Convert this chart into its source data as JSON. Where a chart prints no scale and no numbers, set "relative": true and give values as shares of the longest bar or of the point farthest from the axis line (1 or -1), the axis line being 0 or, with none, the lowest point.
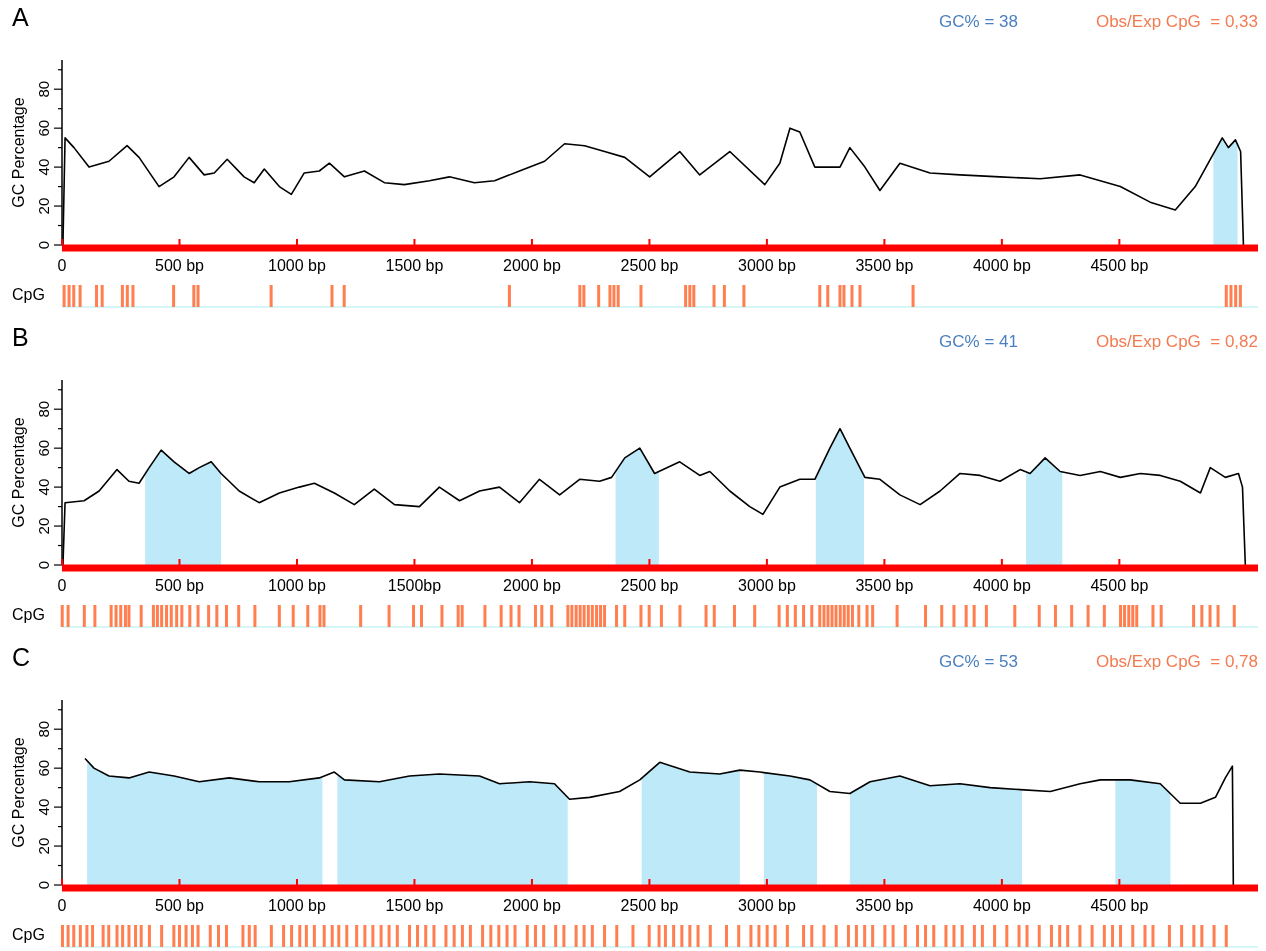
{
  "chart_data": [
    {
      "type": "line",
      "title": "A",
      "ylabel": "GC Percentage",
      "annotations": [
        "GC% = 38",
        "Obs/Exp CpG  = 0,33"
      ],
      "xlim": [
        0,
        5090
      ],
      "ylim": [
        0,
        95
      ],
      "xticks": [
        {
          "value": 0,
          "label": "0"
        },
        {
          "value": 500,
          "label": "500 bp"
        },
        {
          "value": 1000,
          "label": "1000 bp"
        },
        {
          "value": 1500,
          "label": "1500 bp"
        },
        {
          "value": 2000,
          "label": "2000 bp"
        },
        {
          "value": 2500,
          "label": "2500 bp"
        },
        {
          "value": 3000,
          "label": "3000 bp"
        },
        {
          "value": 3500,
          "label": "3500 bp"
        },
        {
          "value": 4000,
          "label": "4000 bp"
        },
        {
          "value": 4500,
          "label": "4500 bp"
        }
      ],
      "yticks": [
        0,
        {
          "value": 10,
          "label": null
        },
        20,
        {
          "value": 30,
          "label": null
        },
        40,
        {
          "value": 50,
          "label": null
        },
        60,
        {
          "value": 70,
          "label": null
        },
        80,
        {
          "value": 90,
          "label": null
        }
      ],
      "x": [
        4,
        13,
        51,
        115,
        200,
        277,
        328,
        413,
        477,
        541,
        605,
        648,
        703,
        775,
        818,
        861,
        925,
        976,
        1031,
        1095,
        1138,
        1202,
        1287,
        1372,
        1457,
        1564,
        1649,
        1755,
        1841,
        1947,
        2054,
        2139,
        2224,
        2309,
        2395,
        2501,
        2629,
        2714,
        2842,
        2991,
        3055,
        3098,
        3140,
        3204,
        3311,
        3353,
        3417,
        3481,
        3566,
        3694,
        3822,
        3992,
        4163,
        4333,
        4504,
        4631,
        4738,
        4823,
        4887,
        4938,
        4964,
        4994,
        5016,
        5028
      ],
      "series": [
        {
          "color": "#000000",
          "values": [
            0,
            55,
            50,
            40,
            43,
            51,
            45,
            30,
            35,
            45,
            36,
            37,
            44,
            35,
            32,
            39,
            30,
            26,
            37,
            38,
            42,
            35,
            38,
            32,
            31,
            33,
            35,
            32,
            33,
            38,
            43,
            52,
            51,
            48,
            45,
            35,
            48,
            36,
            48,
            31,
            42,
            60,
            58,
            40,
            40,
            50,
            40,
            28,
            42,
            37,
            36,
            35,
            34,
            36,
            30,
            22,
            18,
            30,
            44,
            55,
            50,
            54,
            48,
            0
          ]
        }
      ],
      "bands": [
        {
          "axis": "x",
          "from": 4900,
          "to": 5003,
          "color": "#bde9f8"
        }
      ]
    },
    {
      "type": "bar",
      "ylabel": "CpG",
      "relative": true,
      "xlim": [
        0,
        5090
      ],
      "x": [
        9,
        30,
        50,
        77,
        147,
        171,
        257,
        278,
        302,
        475,
        561,
        579,
        890,
        1149,
        1201,
        1904,
        2204,
        2221,
        2284,
        2332,
        2349,
        2367,
        2464,
        2654,
        2672,
        2689,
        2775,
        2819,
        2902,
        3225,
        3259,
        3311,
        3328,
        3362,
        3396,
        3622,
        4955,
        4975,
        4995,
        5015
      ],
      "series": [
        {
          "color": "#ff7f50",
          "values": [
            1,
            1,
            1,
            1,
            1,
            1,
            1,
            1,
            1,
            1,
            1,
            1,
            1,
            1,
            1,
            1,
            1,
            1,
            1,
            1,
            1,
            1,
            1,
            1,
            1,
            1,
            1,
            1,
            1,
            1,
            1,
            1,
            1,
            1,
            1,
            1,
            1,
            1,
            1,
            1
          ]
        }
      ]
    },
    {
      "type": "line",
      "title": "B",
      "ylabel": "GC Percentage",
      "annotations": [
        "GC% = 41",
        "Obs/Exp CpG  = 0,82"
      ],
      "xlim": [
        0,
        5090
      ],
      "ylim": [
        0,
        95
      ],
      "xticks": [
        {
          "value": 0,
          "label": "0"
        },
        {
          "value": 500,
          "label": "500 bp"
        },
        {
          "value": 1000,
          "label": "1000 bp"
        },
        {
          "value": 1500,
          "label": "1500bp"
        },
        {
          "value": 2000,
          "label": "2000 bp"
        },
        {
          "value": 2500,
          "label": "2500 bp"
        },
        {
          "value": 3000,
          "label": "3000 bp"
        },
        {
          "value": 3500,
          "label": "3500 bp"
        },
        {
          "value": 4000,
          "label": "4000 bp"
        },
        {
          "value": 4500,
          "label": "4500 bp"
        }
      ],
      "yticks": [
        0,
        {
          "value": 10,
          "label": null
        },
        20,
        {
          "value": 30,
          "label": null
        },
        40,
        {
          "value": 50,
          "label": null
        },
        60,
        {
          "value": 70,
          "label": null
        },
        80,
        {
          "value": 90,
          "label": null
        }
      ],
      "x": [
        4,
        13,
        94,
        158,
        234,
        285,
        328,
        371,
        422,
        477,
        541,
        584,
        635,
        677,
        754,
        839,
        925,
        1010,
        1074,
        1159,
        1244,
        1329,
        1415,
        1521,
        1606,
        1692,
        1777,
        1862,
        1947,
        2032,
        2118,
        2203,
        2288,
        2339,
        2395,
        2459,
        2522,
        2629,
        2714,
        2757,
        2842,
        2927,
        2983,
        3055,
        3140,
        3204,
        3268,
        3311,
        3353,
        3417,
        3481,
        3566,
        3652,
        3737,
        3822,
        3907,
        3992,
        4078,
        4120,
        4184,
        4248,
        4333,
        4419,
        4504,
        4589,
        4674,
        4759,
        4845,
        4887,
        4951,
        5007,
        5024,
        5036
      ],
      "series": [
        {
          "color": "#000000",
          "values": [
            0,
            32,
            33,
            38,
            49,
            43,
            42,
            50,
            59,
            53,
            47,
            50,
            53,
            47,
            38,
            32,
            37,
            40,
            42,
            37,
            31,
            39,
            31,
            30,
            40,
            33,
            38,
            40,
            32,
            44,
            36,
            44,
            43,
            45,
            55,
            60,
            47,
            53,
            46,
            48,
            38,
            30,
            26,
            40,
            44,
            44,
            60,
            70,
            60,
            45,
            44,
            36,
            31,
            38,
            47,
            46,
            43,
            49,
            47,
            55,
            48,
            46,
            48,
            45,
            47,
            46,
            43,
            37,
            50,
            45,
            47,
            40,
            0
          ]
        }
      ],
      "bands": [
        {
          "axis": "x",
          "from": 354,
          "to": 677,
          "color": "#bde9f8"
        },
        {
          "axis": "x",
          "from": 2356,
          "to": 2540,
          "color": "#bde9f8"
        },
        {
          "axis": "x",
          "from": 3208,
          "to": 3413,
          "color": "#bde9f8"
        },
        {
          "axis": "x",
          "from": 4103,
          "to": 4257,
          "color": "#bde9f8"
        }
      ]
    },
    {
      "type": "bar",
      "ylabel": "CpG",
      "relative": true,
      "xlim": [
        0,
        5090
      ],
      "x": [
        1,
        26,
        95,
        140,
        209,
        230,
        250,
        270,
        285,
        337,
        389,
        406,
        424,
        445,
        465,
        488,
        510,
        544,
        579,
        624,
        659,
        700,
        752,
        821,
        925,
        984,
        1046,
        1098,
        1115,
        1271,
        1392,
        1496,
        1530,
        1617,
        1686,
        1703,
        1800,
        1869,
        1911,
        1945,
        2015,
        2042,
        2084,
        2153,
        2170,
        2188,
        2205,
        2222,
        2240,
        2257,
        2275,
        2292,
        2309,
        2360,
        2395,
        2464,
        2499,
        2551,
        2630,
        2741,
        2776,
        2862,
        2948,
        3052,
        3087,
        3121,
        3156,
        3191,
        3225,
        3243,
        3260,
        3277,
        3294,
        3312,
        3329,
        3346,
        3364,
        3391,
        3426,
        3450,
        3554,
        3675,
        3744,
        3796,
        3848,
        3882,
        3934,
        4055,
        4159,
        4228,
        4297,
        4367,
        4436,
        4505,
        4522,
        4540,
        4557,
        4574,
        4643,
        4678,
        4816,
        4851,
        4886,
        4920,
        4989
      ],
      "series": [
        {
          "color": "#ff7f50",
          "values": [
            1,
            1,
            1,
            1,
            1,
            1,
            1,
            1,
            1,
            1,
            1,
            1,
            1,
            1,
            1,
            1,
            1,
            1,
            1,
            1,
            1,
            1,
            1,
            1,
            1,
            1,
            1,
            1,
            1,
            1,
            1,
            1,
            1,
            1,
            1,
            1,
            1,
            1,
            1,
            1,
            1,
            1,
            1,
            1,
            1,
            1,
            1,
            1,
            1,
            1,
            1,
            1,
            1,
            1,
            1,
            1,
            1,
            1,
            1,
            1,
            1,
            1,
            1,
            1,
            1,
            1,
            1,
            1,
            1,
            1,
            1,
            1,
            1,
            1,
            1,
            1,
            1,
            1,
            1,
            1,
            1,
            1,
            1,
            1,
            1,
            1,
            1,
            1,
            1,
            1,
            1,
            1,
            1,
            1,
            1,
            1,
            1,
            1,
            1,
            1,
            1,
            1,
            1,
            1,
            1
          ]
        }
      ]
    },
    {
      "type": "line",
      "title": "C",
      "ylabel": "GC Percentage",
      "annotations": [
        "GC% = 53",
        "Obs/Exp CpG  = 0,78"
      ],
      "xlim": [
        0,
        5090
      ],
      "ylim": [
        0,
        95
      ],
      "xticks": [
        {
          "value": 0,
          "label": "0"
        },
        {
          "value": 500,
          "label": "500 bp"
        },
        {
          "value": 1000,
          "label": "1000 bp"
        },
        {
          "value": 1500,
          "label": "1500 bp"
        },
        {
          "value": 2000,
          "label": "2000 bp"
        },
        {
          "value": 2500,
          "label": "2500 bp"
        },
        {
          "value": 3000,
          "label": "3000 bp"
        },
        {
          "value": 3500,
          "label": "3500 bp"
        },
        {
          "value": 4000,
          "label": "4000 bp"
        },
        {
          "value": 4500,
          "label": "4500 bp"
        }
      ],
      "yticks": [
        0,
        {
          "value": 10,
          "label": null
        },
        20,
        {
          "value": 30,
          "label": null
        },
        40,
        {
          "value": 50,
          "label": null
        },
        60,
        {
          "value": 70,
          "label": null
        },
        80,
        {
          "value": 90,
          "label": null
        }
      ],
      "x": [
        98,
        136,
        200,
        285,
        371,
        477,
        584,
        712,
        839,
        967,
        1095,
        1159,
        1202,
        1351,
        1479,
        1606,
        1777,
        1862,
        1990,
        2096,
        2160,
        2245,
        2373,
        2459,
        2544,
        2672,
        2799,
        2885,
        2970,
        3098,
        3183,
        3268,
        3353,
        3439,
        3566,
        3694,
        3822,
        3950,
        4078,
        4206,
        4333,
        4419,
        4546,
        4674,
        4759,
        4845,
        4909,
        4951,
        4981,
        4985
      ],
      "series": [
        {
          "color": "#000000",
          "values": [
            65,
            60,
            56,
            55,
            58,
            56,
            53,
            55,
            53,
            53,
            55,
            58,
            54,
            53,
            56,
            57,
            56,
            52,
            53,
            52,
            44,
            45,
            48,
            54,
            63,
            58,
            57,
            59,
            58,
            56,
            54,
            48,
            47,
            53,
            56,
            51,
            52,
            50,
            49,
            48,
            52,
            54,
            54,
            52,
            42,
            42,
            45,
            55,
            61,
            0
          ]
        }
      ],
      "bands": [
        {
          "axis": "x",
          "from": 107,
          "to": 1108,
          "color": "#bde9f8"
        },
        {
          "axis": "x",
          "from": 1172,
          "to": 2152,
          "color": "#bde9f8"
        },
        {
          "axis": "x",
          "from": 2467,
          "to": 2885,
          "color": "#bde9f8"
        },
        {
          "axis": "x",
          "from": 2987,
          "to": 3213,
          "color": "#bde9f8"
        },
        {
          "axis": "x",
          "from": 3353,
          "to": 4086,
          "color": "#bde9f8"
        },
        {
          "axis": "x",
          "from": 4483,
          "to": 4717,
          "color": "#bde9f8"
        }
      ]
    },
    {
      "type": "bar",
      "ylabel": "CpG",
      "relative": true,
      "xlim": [
        0,
        5090
      ],
      "x": [
        2,
        26,
        50,
        78,
        106,
        130,
        175,
        199,
        234,
        258,
        285,
        313,
        337,
        372,
        424,
        476,
        500,
        528,
        555,
        579,
        631,
        666,
        700,
        770,
        797,
        822,
        891,
        943,
        977,
        1012,
        1040,
        1074,
        1116,
        1150,
        1178,
        1212,
        1254,
        1289,
        1323,
        1358,
        1392,
        1427,
        1479,
        1513,
        1548,
        1583,
        1634,
        1669,
        1704,
        1738,
        1790,
        1825,
        1859,
        1894,
        1928,
        1980,
        2015,
        2050,
        2101,
        2136,
        2188,
        2222,
        2257,
        2309,
        2361,
        2430,
        2499,
        2541,
        2568,
        2603,
        2638,
        2672,
        2707,
        2759,
        2828,
        2880,
        2932,
        2966,
        3001,
        3035,
        3087,
        3156,
        3191,
        3243,
        3295,
        3347,
        3381,
        3416,
        3450,
        3502,
        3537,
        3589,
        3641,
        3675,
        3710,
        3762,
        3796,
        3831,
        3883,
        3917,
        3969,
        4021,
        4073,
        4107,
        4159,
        4211,
        4246,
        4280,
        4332,
        4384,
        4436,
        4471,
        4505,
        4557,
        4609,
        4643,
        4713,
        4765,
        4817,
        4851,
        4903,
        4955
      ],
      "series": [
        {
          "color": "#ff7f50",
          "values": [
            1,
            1,
            1,
            1,
            1,
            1,
            1,
            1,
            1,
            1,
            1,
            1,
            1,
            1,
            1,
            1,
            1,
            1,
            1,
            1,
            1,
            1,
            1,
            1,
            1,
            1,
            1,
            1,
            1,
            1,
            1,
            1,
            1,
            1,
            1,
            1,
            1,
            1,
            1,
            1,
            1,
            1,
            1,
            1,
            1,
            1,
            1,
            1,
            1,
            1,
            1,
            1,
            1,
            1,
            1,
            1,
            1,
            1,
            1,
            1,
            1,
            1,
            1,
            1,
            1,
            1,
            1,
            1,
            1,
            1,
            1,
            1,
            1,
            1,
            1,
            1,
            1,
            1,
            1,
            1,
            1,
            1,
            1,
            1,
            1,
            1,
            1,
            1,
            1,
            1,
            1,
            1,
            1,
            1,
            1,
            1,
            1,
            1,
            1,
            1,
            1,
            1,
            1,
            1,
            1,
            1,
            1,
            1,
            1,
            1,
            1,
            1,
            1,
            1,
            1,
            1,
            1,
            1,
            1,
            1,
            1,
            1
          ]
        }
      ]
    }
  ]
}
